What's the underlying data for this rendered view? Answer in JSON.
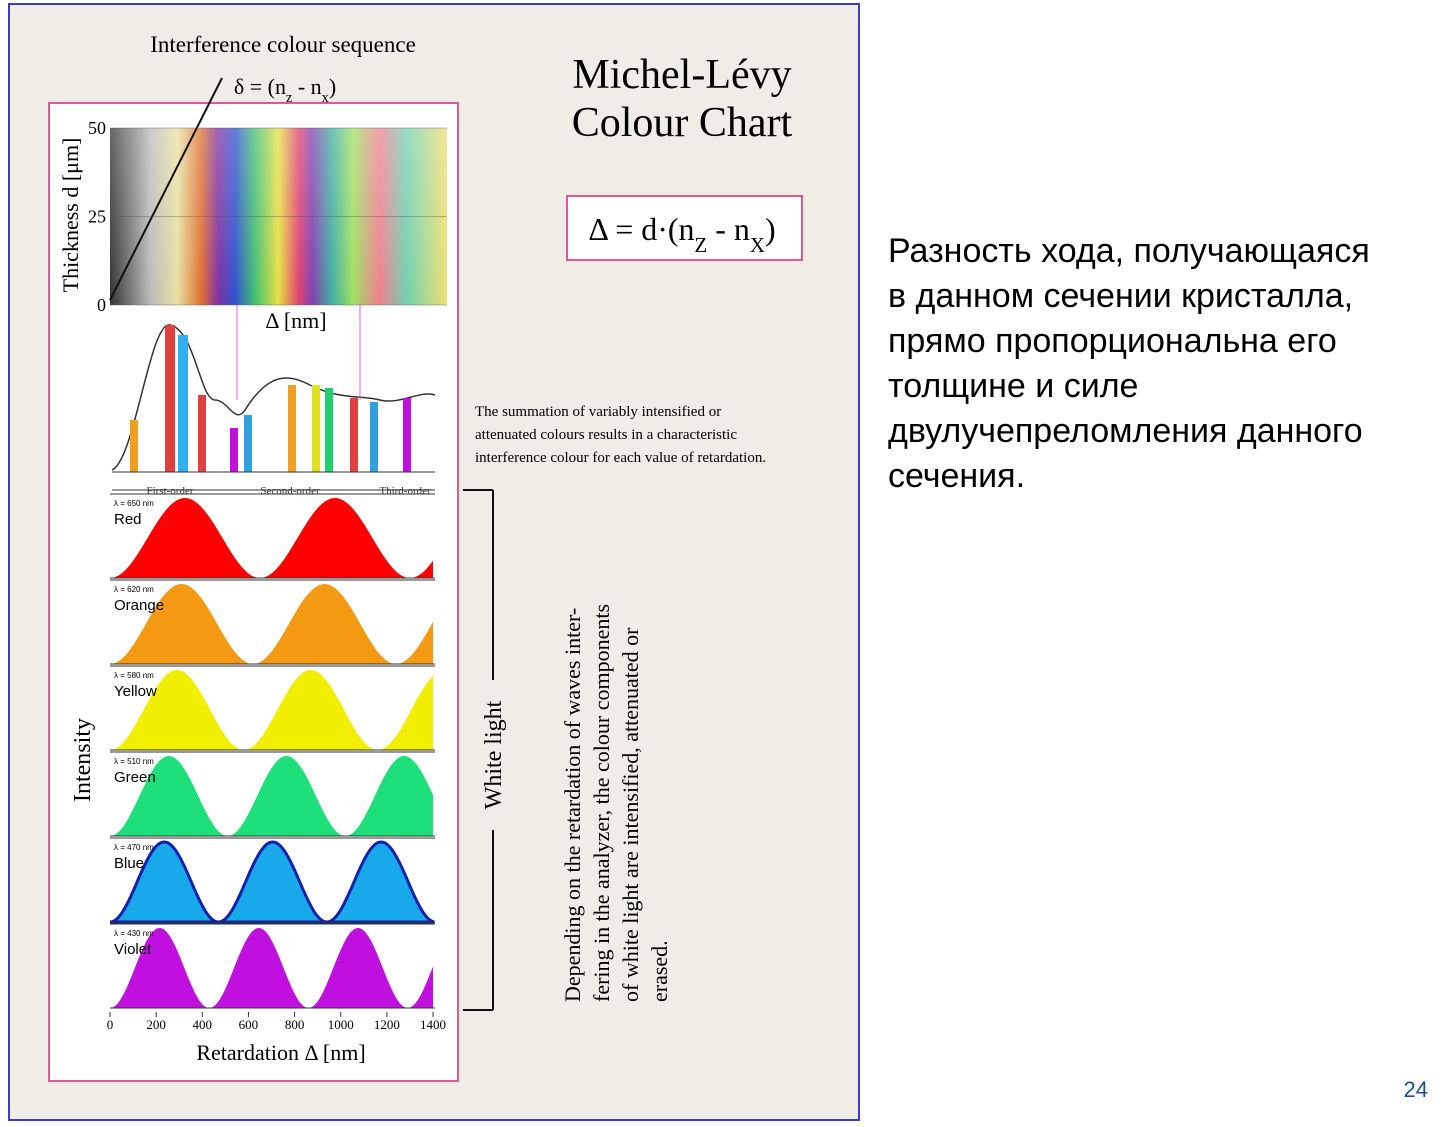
{
  "slide": {
    "body_lines": [
      "Разность хода, получающаяся",
      "в данном сечении кристалла,",
      "прямо пропорциональна его",
      "толщине и силе",
      "двулучепреломления данного",
      "сечения."
    ],
    "page_number": "24"
  },
  "figure": {
    "title_lines": [
      "Michel-Lévy",
      "Colour Chart"
    ],
    "sequence_title": "Interference colour sequence",
    "delta_formula": [
      "δ = (n",
      "z",
      " - n",
      "x",
      ")"
    ],
    "equation": [
      "Δ = d·(n",
      "Z",
      " - n",
      "X",
      ")"
    ],
    "thickness_label": "Thickness d [μm]",
    "thickness_ticks": [
      0,
      25,
      50
    ],
    "thickness_lim": [
      0,
      50
    ],
    "band_axis_label": "Δ  [nm]",
    "summation_lines": [
      "The summation of variably intensified or",
      "attenuated colours results in a characteristic",
      "interference colour for each value of retardation."
    ],
    "orders": [
      "First-order",
      "Second-order",
      "Third-order"
    ],
    "intensity_label": "Intensity",
    "white_light": "White light",
    "depending_lines": [
      "Depending on the retardation of waves inter-",
      "fering in the analyzer, the colour components",
      "of white light are intensified, attenuated or",
      "erased."
    ],
    "waves": [
      {
        "name": "Red",
        "label": "λ = 650 nm",
        "wavelength": 650,
        "color": "#ff0000"
      },
      {
        "name": "Orange",
        "label": "λ = 620 nm",
        "wavelength": 620,
        "color": "#f39a12"
      },
      {
        "name": "Yellow",
        "label": "λ = 580 nm",
        "wavelength": 580,
        "color": "#f2ee00"
      },
      {
        "name": "Green",
        "label": "λ = 510 nm",
        "wavelength": 510,
        "color": "#1ee07a"
      },
      {
        "name": "Blue",
        "label": "λ = 470 nm",
        "wavelength": 470,
        "color": "#17a9ea"
      },
      {
        "name": "Violet",
        "label": "λ = 430 nm",
        "wavelength": 430,
        "color": "#c010e0"
      }
    ],
    "xlim": [
      0,
      1400
    ],
    "xticks": [
      0,
      200,
      400,
      600,
      800,
      1000,
      1200,
      1400
    ],
    "xlabel": "Retardation  Δ  [nm]"
  }
}
